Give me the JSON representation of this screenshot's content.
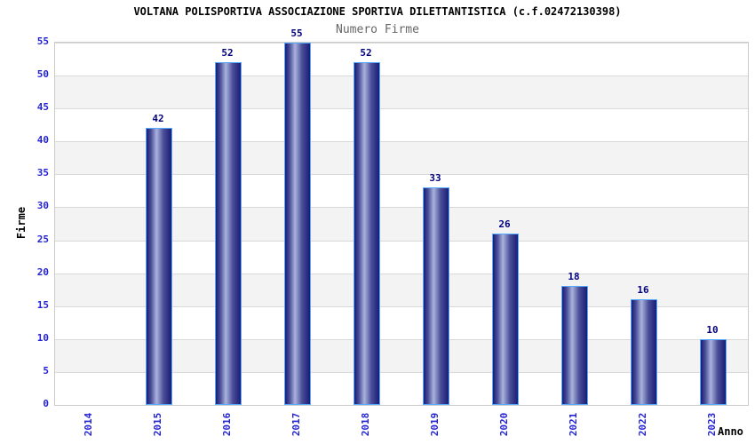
{
  "chart_data": {
    "type": "bar",
    "title": "VOLTANA POLISPORTIVA ASSOCIAZIONE SPORTIVA DILETTANTISTICA (c.f.02472130398)",
    "subtitle": "Numero Firme",
    "xlabel": "Anno",
    "ylabel": "Firme",
    "categories": [
      "2014",
      "2015",
      "2016",
      "2017",
      "2018",
      "2019",
      "2020",
      "2021",
      "2022",
      "2023"
    ],
    "values": [
      0,
      42,
      52,
      55,
      52,
      33,
      26,
      18,
      16,
      10
    ],
    "ylim": [
      0,
      55
    ],
    "ytick_step": 5,
    "grid": true,
    "legend": "none",
    "colors": {
      "tick_label": "#2323d6",
      "data_label": "#00007d",
      "bar_dark": "#1b1b74",
      "bar_mid": "#4a4f99",
      "bar_light": "#aab2dc",
      "bar_border": "#55a9ff",
      "band_gray": "#f3f3f3",
      "gridline": "#d9d9d9",
      "plot_border": "#cccccc",
      "title_color": "#000000",
      "subtitle_color": "#666666"
    }
  }
}
